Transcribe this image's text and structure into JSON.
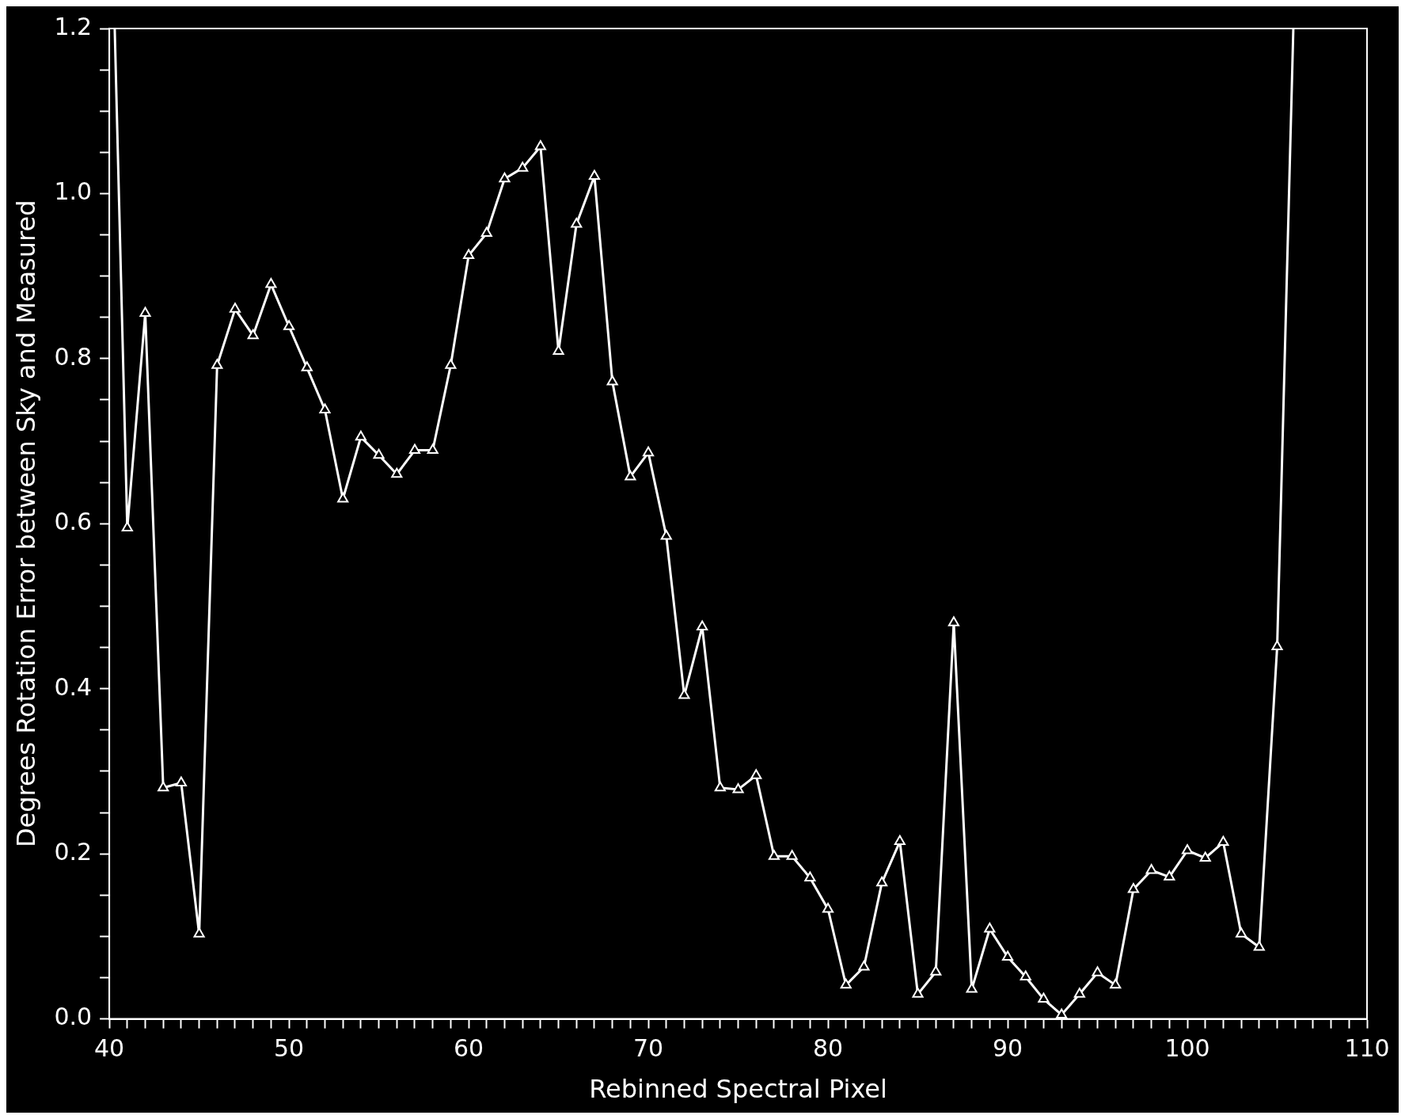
{
  "chart_data": {
    "type": "line",
    "xlabel": "Rebinned Spectral Pixel",
    "ylabel": "Degrees Rotation Error between Sky and Measured",
    "color": "#ffffff",
    "marker": "triangle",
    "line_style": "solid",
    "grid": false,
    "legend": false,
    "x": [
      40.3,
      41,
      42,
      43,
      44,
      45,
      46,
      47,
      48,
      49,
      50,
      51,
      52,
      53,
      54,
      55,
      56,
      57,
      58,
      59,
      60,
      61,
      62,
      63,
      64,
      65,
      66,
      67,
      68,
      69,
      70,
      71,
      72,
      73,
      74,
      75,
      76,
      77,
      78,
      79,
      80,
      81,
      82,
      83,
      84,
      85,
      86,
      87,
      88,
      89,
      90,
      91,
      92,
      93,
      94,
      95,
      96,
      97,
      98,
      99,
      100,
      101,
      102,
      103,
      104,
      105,
      105.9
    ],
    "values": [
      1.2,
      0.595,
      0.855,
      0.28,
      0.286,
      0.103,
      0.792,
      0.86,
      0.828,
      0.89,
      0.839,
      0.789,
      0.738,
      0.63,
      0.705,
      0.683,
      0.66,
      0.689,
      0.689,
      0.792,
      0.925,
      0.952,
      1.018,
      1.031,
      1.057,
      0.809,
      0.963,
      1.021,
      0.772,
      0.657,
      0.686,
      0.585,
      0.392,
      0.475,
      0.28,
      0.278,
      0.295,
      0.197,
      0.197,
      0.171,
      0.133,
      0.041,
      0.063,
      0.165,
      0.215,
      0.03,
      0.057,
      0.48,
      0.036,
      0.109,
      0.075,
      0.051,
      0.024,
      0.005,
      0.03,
      0.056,
      0.041,
      0.157,
      0.18,
      0.172,
      0.204,
      0.195,
      0.214,
      0.103,
      0.087,
      0.451,
      1.2
    ],
    "xlim": [
      40,
      110
    ],
    "ylim": [
      0,
      1.2
    ],
    "xticks": [
      40,
      {
        "value": 41,
        "label": null
      },
      {
        "value": 42,
        "label": null
      },
      {
        "value": 43,
        "label": null
      },
      {
        "value": 44,
        "label": null
      },
      {
        "value": 45,
        "label": null
      },
      {
        "value": 46,
        "label": null
      },
      {
        "value": 47,
        "label": null
      },
      {
        "value": 48,
        "label": null
      },
      {
        "value": 49,
        "label": null
      },
      50,
      {
        "value": 51,
        "label": null
      },
      {
        "value": 52,
        "label": null
      },
      {
        "value": 53,
        "label": null
      },
      {
        "value": 54,
        "label": null
      },
      {
        "value": 55,
        "label": null
      },
      {
        "value": 56,
        "label": null
      },
      {
        "value": 57,
        "label": null
      },
      {
        "value": 58,
        "label": null
      },
      {
        "value": 59,
        "label": null
      },
      60,
      {
        "value": 61,
        "label": null
      },
      {
        "value": 62,
        "label": null
      },
      {
        "value": 63,
        "label": null
      },
      {
        "value": 64,
        "label": null
      },
      {
        "value": 65,
        "label": null
      },
      {
        "value": 66,
        "label": null
      },
      {
        "value": 67,
        "label": null
      },
      {
        "value": 68,
        "label": null
      },
      {
        "value": 69,
        "label": null
      },
      70,
      {
        "value": 71,
        "label": null
      },
      {
        "value": 72,
        "label": null
      },
      {
        "value": 73,
        "label": null
      },
      {
        "value": 74,
        "label": null
      },
      {
        "value": 75,
        "label": null
      },
      {
        "value": 76,
        "label": null
      },
      {
        "value": 77,
        "label": null
      },
      {
        "value": 78,
        "label": null
      },
      {
        "value": 79,
        "label": null
      },
      80,
      {
        "value": 81,
        "label": null
      },
      {
        "value": 82,
        "label": null
      },
      {
        "value": 83,
        "label": null
      },
      {
        "value": 84,
        "label": null
      },
      {
        "value": 85,
        "label": null
      },
      {
        "value": 86,
        "label": null
      },
      {
        "value": 87,
        "label": null
      },
      {
        "value": 88,
        "label": null
      },
      {
        "value": 89,
        "label": null
      },
      90,
      {
        "value": 91,
        "label": null
      },
      {
        "value": 92,
        "label": null
      },
      {
        "value": 93,
        "label": null
      },
      {
        "value": 94,
        "label": null
      },
      {
        "value": 95,
        "label": null
      },
      {
        "value": 96,
        "label": null
      },
      {
        "value": 97,
        "label": null
      },
      {
        "value": 98,
        "label": null
      },
      {
        "value": 99,
        "label": null
      },
      100,
      {
        "value": 101,
        "label": null
      },
      {
        "value": 102,
        "label": null
      },
      {
        "value": 103,
        "label": null
      },
      {
        "value": 104,
        "label": null
      },
      {
        "value": 105,
        "label": null
      },
      {
        "value": 106,
        "label": null
      },
      {
        "value": 107,
        "label": null
      },
      {
        "value": 108,
        "label": null
      },
      {
        "value": 109,
        "label": null
      },
      110
    ],
    "yticks": [
      {
        "value": 0,
        "label": "0.0"
      },
      {
        "value": 0.05,
        "label": null
      },
      {
        "value": 0.1,
        "label": null
      },
      {
        "value": 0.15,
        "label": null
      },
      {
        "value": 0.2,
        "label": "0.2"
      },
      {
        "value": 0.25,
        "label": null
      },
      {
        "value": 0.3,
        "label": null
      },
      {
        "value": 0.35,
        "label": null
      },
      {
        "value": 0.4,
        "label": "0.4"
      },
      {
        "value": 0.45,
        "label": null
      },
      {
        "value": 0.5,
        "label": null
      },
      {
        "value": 0.55,
        "label": null
      },
      {
        "value": 0.6,
        "label": "0.6"
      },
      {
        "value": 0.65,
        "label": null
      },
      {
        "value": 0.7,
        "label": null
      },
      {
        "value": 0.75,
        "label": null
      },
      {
        "value": 0.8,
        "label": "0.8"
      },
      {
        "value": 0.85,
        "label": null
      },
      {
        "value": 0.9,
        "label": null
      },
      {
        "value": 0.95,
        "label": null
      },
      {
        "value": 1,
        "label": "1.0"
      },
      {
        "value": 1.05,
        "label": null
      },
      {
        "value": 1.1,
        "label": null
      },
      {
        "value": 1.15,
        "label": null
      },
      {
        "value": 1.2,
        "label": "1.2"
      }
    ]
  }
}
